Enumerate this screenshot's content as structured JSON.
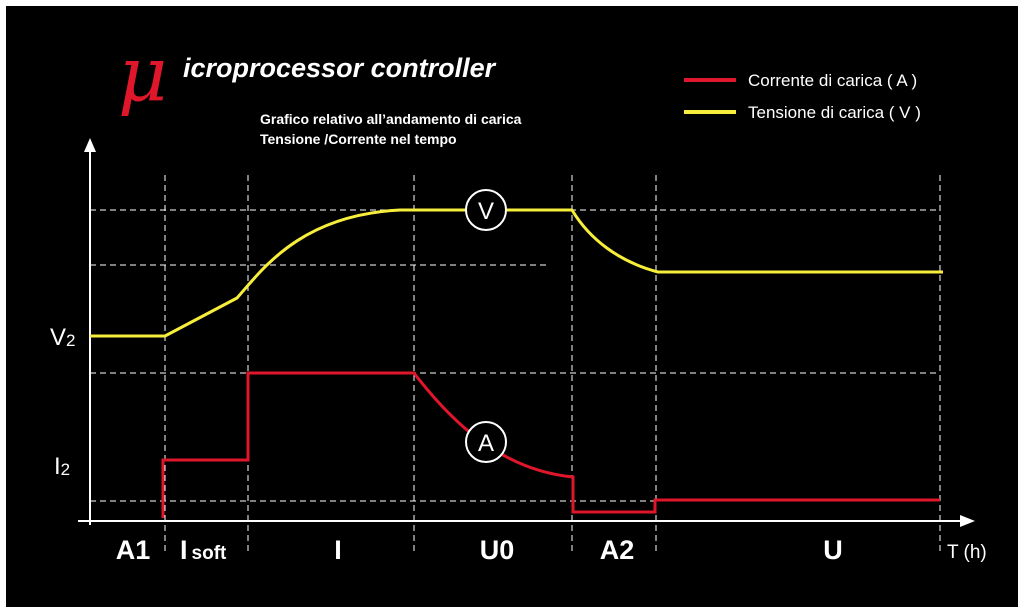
{
  "title": {
    "mu": "μ",
    "rest": "icroprocessor controller"
  },
  "subtitle": {
    "line1": "Grafico relativo all’andamento di carica",
    "line2": "Tensione /Corrente nel tempo"
  },
  "legend": {
    "current": "Corrente di carica ( A )",
    "voltage": "Tensione di carica ( V )"
  },
  "colors": {
    "current": "#e0162b",
    "voltage": "#f6ee3a",
    "background": "#000000",
    "foreground": "#ffffff"
  },
  "axes": {
    "y_labels": [
      {
        "main": "V",
        "sub": "2"
      },
      {
        "main": "I",
        "sub": "2"
      }
    ],
    "x_label": "T (h)"
  },
  "phases": [
    {
      "main": "A1",
      "sub": ""
    },
    {
      "main": "I",
      "sub": "soft"
    },
    {
      "main": "I",
      "sub": ""
    },
    {
      "main": "U0",
      "sub": ""
    },
    {
      "main": "A2",
      "sub": ""
    },
    {
      "main": "U",
      "sub": ""
    }
  ],
  "markers": {
    "voltage": "V",
    "current": "A"
  }
}
